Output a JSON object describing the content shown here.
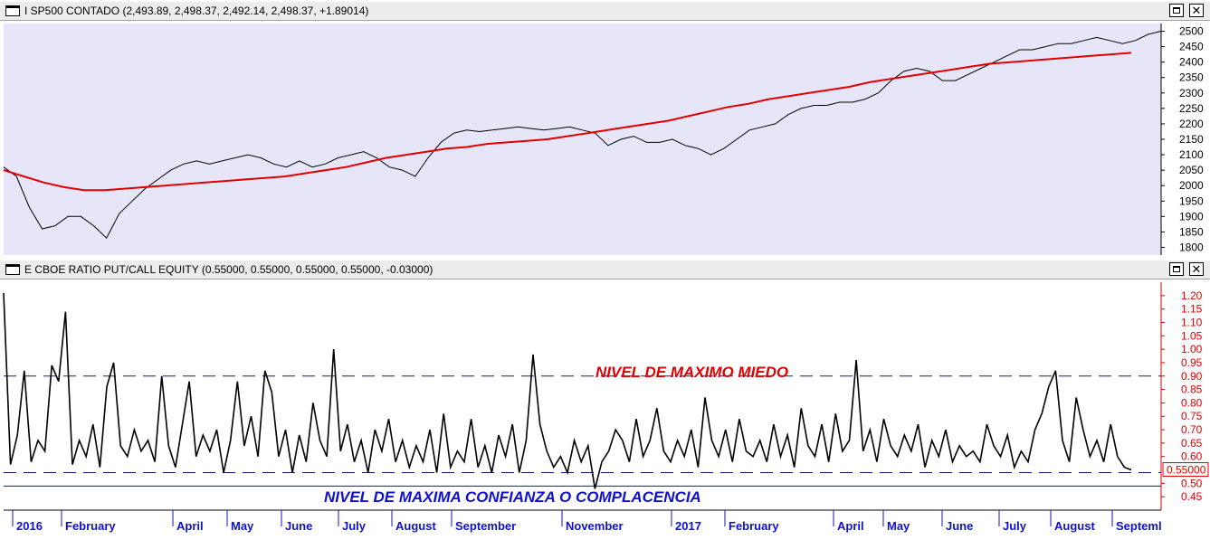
{
  "panel1": {
    "title": "I SP500 CONTADO (2,493.89, 2,498.37, 2,492.14, 2,498.37, +1.89014)",
    "background": "#e6e6f8",
    "price_color": "#000000",
    "ma_color": "#e00000",
    "yticks": [
      "2500",
      "2450",
      "2400",
      "2350",
      "2300",
      "2250",
      "2200",
      "2150",
      "2100",
      "2050",
      "2000",
      "1950",
      "1900",
      "1850",
      "1800"
    ]
  },
  "panel2": {
    "title": "E CBOE RATIO PUT/CALL EQUITY (0.55000, 0.55000, 0.55000, 0.55000, -0.03000)",
    "yticks": [
      "1.20",
      "1.15",
      "1.10",
      "1.05",
      "1.00",
      "0.95",
      "0.90",
      "0.85",
      "0.80",
      "0.75",
      "0.70",
      "0.65",
      "0.60",
      "0.50",
      "0.45"
    ],
    "last_value": "0.55000",
    "fear_label": "NIVEL DE MAXIMO MIEDO",
    "confidence_label": "NIVEL DE MAXIMA CONFIANZA O COMPLACENCIA",
    "fear_level": 0.9,
    "low_level": 0.54,
    "confidence_line": 0.49,
    "tick_color": "#e00000",
    "fear_color": "#e00000",
    "confidence_color": "#1010d0"
  },
  "x_axis": {
    "months": [
      "2016",
      "February",
      "April",
      "May",
      "June",
      "July",
      "August",
      "September",
      "November",
      "2017",
      "February",
      "April",
      "May",
      "June",
      "July",
      "August",
      "Septeml"
    ]
  },
  "chart_data": [
    {
      "type": "line",
      "series": [
        {
          "name": "I SP500 CONTADO",
          "values": [
            2060,
            2030,
            1930,
            1860,
            1870,
            1900,
            1900,
            1870,
            1830,
            1910,
            1950,
            1990,
            2020,
            2050,
            2070,
            2080,
            2070,
            2080,
            2090,
            2100,
            2090,
            2070,
            2060,
            2080,
            2060,
            2070,
            2090,
            2100,
            2110,
            2090,
            2060,
            2050,
            2030,
            2090,
            2140,
            2170,
            2180,
            2175,
            2180,
            2185,
            2190,
            2185,
            2180,
            2185,
            2190,
            2180,
            2170,
            2130,
            2150,
            2160,
            2140,
            2140,
            2150,
            2130,
            2120,
            2100,
            2120,
            2150,
            2180,
            2190,
            2200,
            2230,
            2250,
            2260,
            2260,
            2270,
            2270,
            2280,
            2300,
            2340,
            2370,
            2380,
            2370,
            2340,
            2340,
            2360,
            2380,
            2400,
            2420,
            2440,
            2440,
            2450,
            2460,
            2460,
            2470,
            2480,
            2470,
            2460,
            2470,
            2490,
            2500
          ]
        },
        {
          "name": "MA",
          "values": [
            2050,
            2030,
            2010,
            1995,
            1985,
            1985,
            1990,
            1995,
            2000,
            2005,
            2010,
            2015,
            2020,
            2025,
            2030,
            2040,
            2050,
            2060,
            2075,
            2090,
            2100,
            2110,
            2120,
            2125,
            2135,
            2140,
            2145,
            2150,
            2160,
            2170,
            2180,
            2190,
            2200,
            2210,
            2225,
            2240,
            2255,
            2265,
            2280,
            2290,
            2300,
            2310,
            2320,
            2335,
            2345,
            2355,
            2365,
            2375,
            2385,
            2395,
            2400,
            2405,
            2410,
            2415,
            2420,
            2425,
            2430
          ]
        }
      ],
      "ylim": [
        1775,
        2525
      ]
    },
    {
      "type": "line",
      "series": [
        {
          "name": "E CBOE RATIO PUT/CALL EQUITY",
          "values": [
            1.21,
            0.57,
            0.68,
            0.92,
            0.58,
            0.66,
            0.62,
            0.94,
            0.88,
            1.14,
            0.57,
            0.66,
            0.6,
            0.72,
            0.56,
            0.86,
            0.95,
            0.64,
            0.6,
            0.7,
            0.62,
            0.66,
            0.58,
            0.9,
            0.64,
            0.56,
            0.72,
            0.88,
            0.6,
            0.68,
            0.62,
            0.7,
            0.54,
            0.66,
            0.88,
            0.64,
            0.75,
            0.6,
            0.92,
            0.84,
            0.6,
            0.7,
            0.54,
            0.68,
            0.58,
            0.8,
            0.66,
            0.6,
            1.0,
            0.62,
            0.72,
            0.58,
            0.66,
            0.54,
            0.7,
            0.62,
            0.74,
            0.58,
            0.66,
            0.56,
            0.64,
            0.58,
            0.7,
            0.54,
            0.76,
            0.56,
            0.62,
            0.58,
            0.74,
            0.56,
            0.64,
            0.54,
            0.68,
            0.6,
            0.72,
            0.54,
            0.66,
            0.98,
            0.72,
            0.62,
            0.56,
            0.6,
            0.54,
            0.66,
            0.58,
            0.64,
            0.48,
            0.58,
            0.62,
            0.7,
            0.66,
            0.58,
            0.74,
            0.6,
            0.66,
            0.78,
            0.62,
            0.58,
            0.66,
            0.6,
            0.7,
            0.56,
            0.82,
            0.66,
            0.6,
            0.7,
            0.58,
            0.74,
            0.62,
            0.6,
            0.66,
            0.58,
            0.72,
            0.6,
            0.68,
            0.56,
            0.78,
            0.64,
            0.6,
            0.72,
            0.58,
            0.76,
            0.62,
            0.66,
            0.96,
            0.62,
            0.7,
            0.58,
            0.74,
            0.64,
            0.6,
            0.68,
            0.62,
            0.72,
            0.56,
            0.66,
            0.6,
            0.7,
            0.58,
            0.64,
            0.6,
            0.62,
            0.58,
            0.72,
            0.64,
            0.6,
            0.68,
            0.56,
            0.62,
            0.58,
            0.7,
            0.76,
            0.86,
            0.92,
            0.66,
            0.58,
            0.82,
            0.7,
            0.6,
            0.66,
            0.58,
            0.72,
            0.6,
            0.56,
            0.55
          ]
        }
      ],
      "ylim": [
        0.4,
        1.25
      ],
      "reference_lines": [
        0.9,
        0.54,
        0.49
      ]
    }
  ]
}
